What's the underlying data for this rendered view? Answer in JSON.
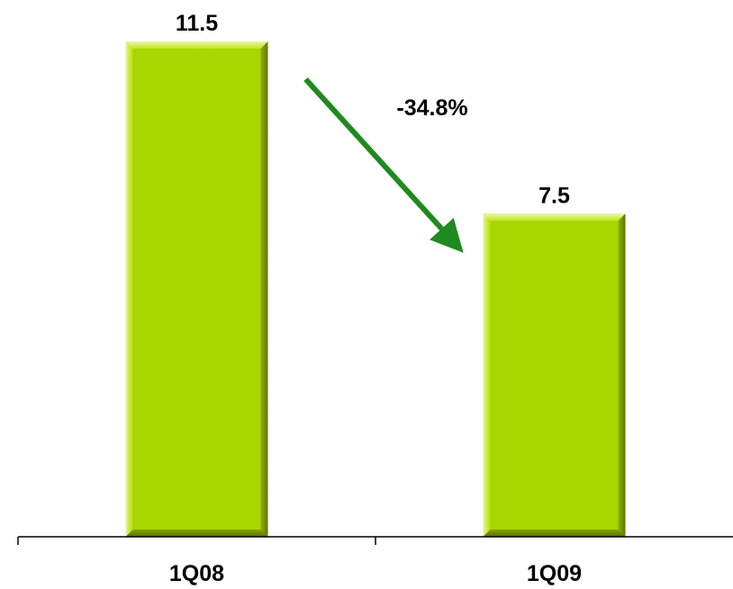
{
  "chart_data": {
    "type": "bar",
    "categories": [
      "1Q08",
      "1Q09"
    ],
    "values": [
      11.5,
      7.5
    ],
    "data_labels": [
      "11.5",
      "7.5"
    ],
    "title": "",
    "xlabel": "",
    "ylabel": "",
    "ylim": [
      0,
      11.5
    ],
    "grid": false,
    "legend": "none",
    "annotation": {
      "text": "-34.8%",
      "from_category": "1Q08",
      "to_category": "1Q09",
      "arrow_color": "#1f8a1f"
    },
    "colors": {
      "bar_face": "#a8d600",
      "bar_edge_light": "#d9f27a",
      "bar_edge_dark": "#6f8f00"
    }
  }
}
